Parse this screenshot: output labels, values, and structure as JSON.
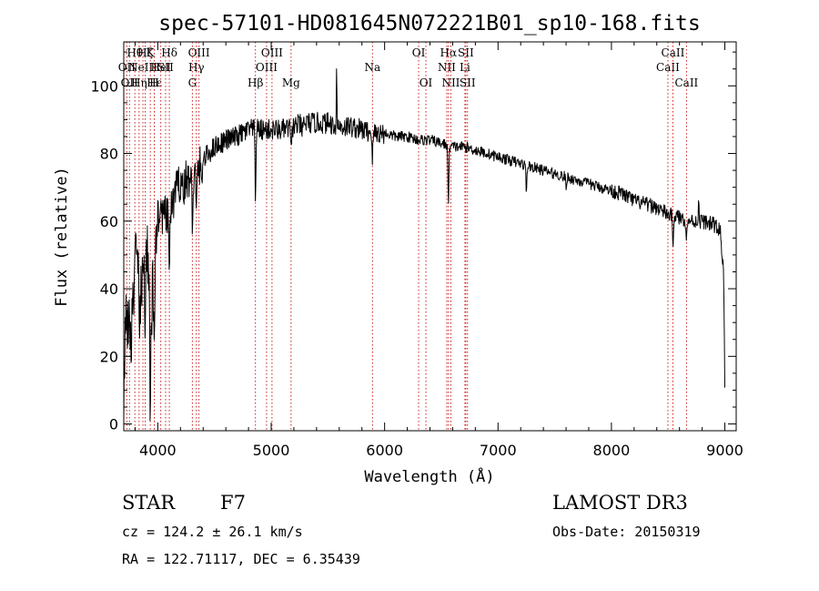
{
  "chart_data": {
    "type": "line",
    "title": "spec-57101-HD081645N072221B01_sp10-168.fits",
    "xlabel": "Wavelength (Å)",
    "ylabel": "Flux (relative)",
    "xlim": [
      3700,
      9100
    ],
    "ylim": [
      -2,
      113
    ],
    "x_ticks": [
      4000,
      5000,
      6000,
      7000,
      8000,
      9000
    ],
    "y_ticks": [
      0,
      20,
      40,
      60,
      80,
      100
    ],
    "grid": false,
    "series": [
      {
        "name": "flux",
        "anchors": [
          [
            3700,
            3
          ],
          [
            3720,
            35
          ],
          [
            3760,
            25
          ],
          [
            3800,
            48
          ],
          [
            3850,
            35
          ],
          [
            3900,
            55
          ],
          [
            3935,
            30
          ],
          [
            3960,
            40
          ],
          [
            3980,
            58
          ],
          [
            4000,
            62
          ],
          [
            4050,
            62
          ],
          [
            4100,
            60
          ],
          [
            4150,
            68
          ],
          [
            4200,
            72
          ],
          [
            4300,
            72
          ],
          [
            4400,
            78
          ],
          [
            4500,
            82
          ],
          [
            4600,
            84
          ],
          [
            4700,
            85
          ],
          [
            4800,
            87
          ],
          [
            4900,
            87
          ],
          [
            5000,
            87
          ],
          [
            5100,
            87
          ],
          [
            5200,
            88
          ],
          [
            5300,
            89
          ],
          [
            5400,
            89
          ],
          [
            5500,
            89
          ],
          [
            5600,
            88
          ],
          [
            5700,
            88
          ],
          [
            5800,
            87
          ],
          [
            5900,
            86
          ],
          [
            6000,
            86
          ],
          [
            6100,
            85
          ],
          [
            6200,
            85
          ],
          [
            6300,
            84
          ],
          [
            6400,
            84
          ],
          [
            6500,
            83
          ],
          [
            6600,
            82
          ],
          [
            6700,
            82
          ],
          [
            6800,
            81
          ],
          [
            6900,
            80
          ],
          [
            7000,
            79
          ],
          [
            7100,
            78
          ],
          [
            7200,
            77
          ],
          [
            7300,
            76
          ],
          [
            7400,
            75
          ],
          [
            7500,
            74
          ],
          [
            7600,
            73
          ],
          [
            7700,
            72
          ],
          [
            7800,
            71
          ],
          [
            7900,
            70
          ],
          [
            8000,
            69
          ],
          [
            8100,
            68
          ],
          [
            8200,
            66
          ],
          [
            8300,
            65
          ],
          [
            8400,
            64
          ],
          [
            8500,
            62
          ],
          [
            8600,
            61
          ],
          [
            8700,
            60
          ],
          [
            8800,
            60
          ],
          [
            8900,
            59
          ],
          [
            8960,
            57
          ],
          [
            8990,
            45
          ],
          [
            9000,
            10
          ]
        ],
        "absorption": [
          {
            "x": 3934,
            "depth": 35,
            "width": 6
          },
          {
            "x": 3969,
            "depth": 30,
            "width": 6
          },
          {
            "x": 3889,
            "depth": 18,
            "width": 5
          },
          {
            "x": 3835,
            "depth": 12,
            "width": 4
          },
          {
            "x": 4102,
            "depth": 12,
            "width": 6
          },
          {
            "x": 4227,
            "depth": 8,
            "width": 5
          },
          {
            "x": 4305,
            "depth": 12,
            "width": 6
          },
          {
            "x": 4340,
            "depth": 14,
            "width": 6
          },
          {
            "x": 4384,
            "depth": 8,
            "width": 5
          },
          {
            "x": 4861,
            "depth": 22,
            "width": 5
          },
          {
            "x": 5175,
            "depth": 8,
            "width": 6
          },
          {
            "x": 5270,
            "depth": 5,
            "width": 5
          },
          {
            "x": 5893,
            "depth": 8,
            "width": 5
          },
          {
            "x": 6563,
            "depth": 18,
            "width": 6
          },
          {
            "x": 7250,
            "depth": 8,
            "width": 6
          },
          {
            "x": 7600,
            "depth": 4,
            "width": 5
          },
          {
            "x": 8542,
            "depth": 8,
            "width": 6
          },
          {
            "x": 8662,
            "depth": 6,
            "width": 6
          }
        ],
        "spikes": [
          {
            "x": 5577,
            "height": 22,
            "width": 3
          },
          {
            "x": 8770,
            "height": 6,
            "width": 4
          }
        ]
      }
    ],
    "line_markers": [
      {
        "x": 3727,
        "label": "OII",
        "row": 2
      },
      {
        "x": 3750,
        "label": "OII",
        "row": 3
      },
      {
        "x": 3798,
        "label": "Hθ",
        "row": 1
      },
      {
        "x": 3835,
        "label": "Hη",
        "row": 3
      },
      {
        "x": 3869,
        "label": "NeIII",
        "row": 2
      },
      {
        "x": 3889,
        "label": "Hζ",
        "row": 1
      },
      {
        "x": 3934,
        "label": "K",
        "row": 1
      },
      {
        "x": 3969,
        "label": "H",
        "row": 3
      },
      {
        "x": 3970,
        "label": "Hε",
        "row": 3
      },
      {
        "x": 4026,
        "label": "HeI",
        "row": 2
      },
      {
        "x": 4069,
        "label": "SII",
        "row": 2
      },
      {
        "x": 4102,
        "label": "Hδ",
        "row": 1
      },
      {
        "x": 4305,
        "label": "G",
        "row": 3
      },
      {
        "x": 4340,
        "label": "Hγ",
        "row": 2
      },
      {
        "x": 4363,
        "label": "OIII",
        "row": 1
      },
      {
        "x": 4861,
        "label": "Hβ",
        "row": 3
      },
      {
        "x": 4959,
        "label": "OIII",
        "row": 2
      },
      {
        "x": 5007,
        "label": "OIII",
        "row": 1
      },
      {
        "x": 5175,
        "label": "Mg",
        "row": 3
      },
      {
        "x": 5893,
        "label": "Na",
        "row": 2
      },
      {
        "x": 6300,
        "label": "OI",
        "row": 1
      },
      {
        "x": 6364,
        "label": "OI",
        "row": 3
      },
      {
        "x": 6548,
        "label": "NII",
        "row": 2
      },
      {
        "x": 6563,
        "label": "Hα",
        "row": 1
      },
      {
        "x": 6584,
        "label": "NII",
        "row": 3
      },
      {
        "x": 6708,
        "label": "Li",
        "row": 2
      },
      {
        "x": 6716,
        "label": "SII",
        "row": 1
      },
      {
        "x": 6731,
        "label": "SII",
        "row": 3
      },
      {
        "x": 8498,
        "label": "CaII",
        "row": 2
      },
      {
        "x": 8542,
        "label": "CaII",
        "row": 1
      },
      {
        "x": 8662,
        "label": "CaII",
        "row": 3
      }
    ],
    "marker_color": "#cc2222"
  },
  "info": {
    "object_type": "STAR",
    "subclass": "F7",
    "survey": "LAMOST DR3",
    "redshift": "cz = 124.2 ± 26.1 km/s",
    "obs_date": "Obs-Date: 20150319",
    "coords": "RA = 122.71117, DEC =   6.35439"
  }
}
